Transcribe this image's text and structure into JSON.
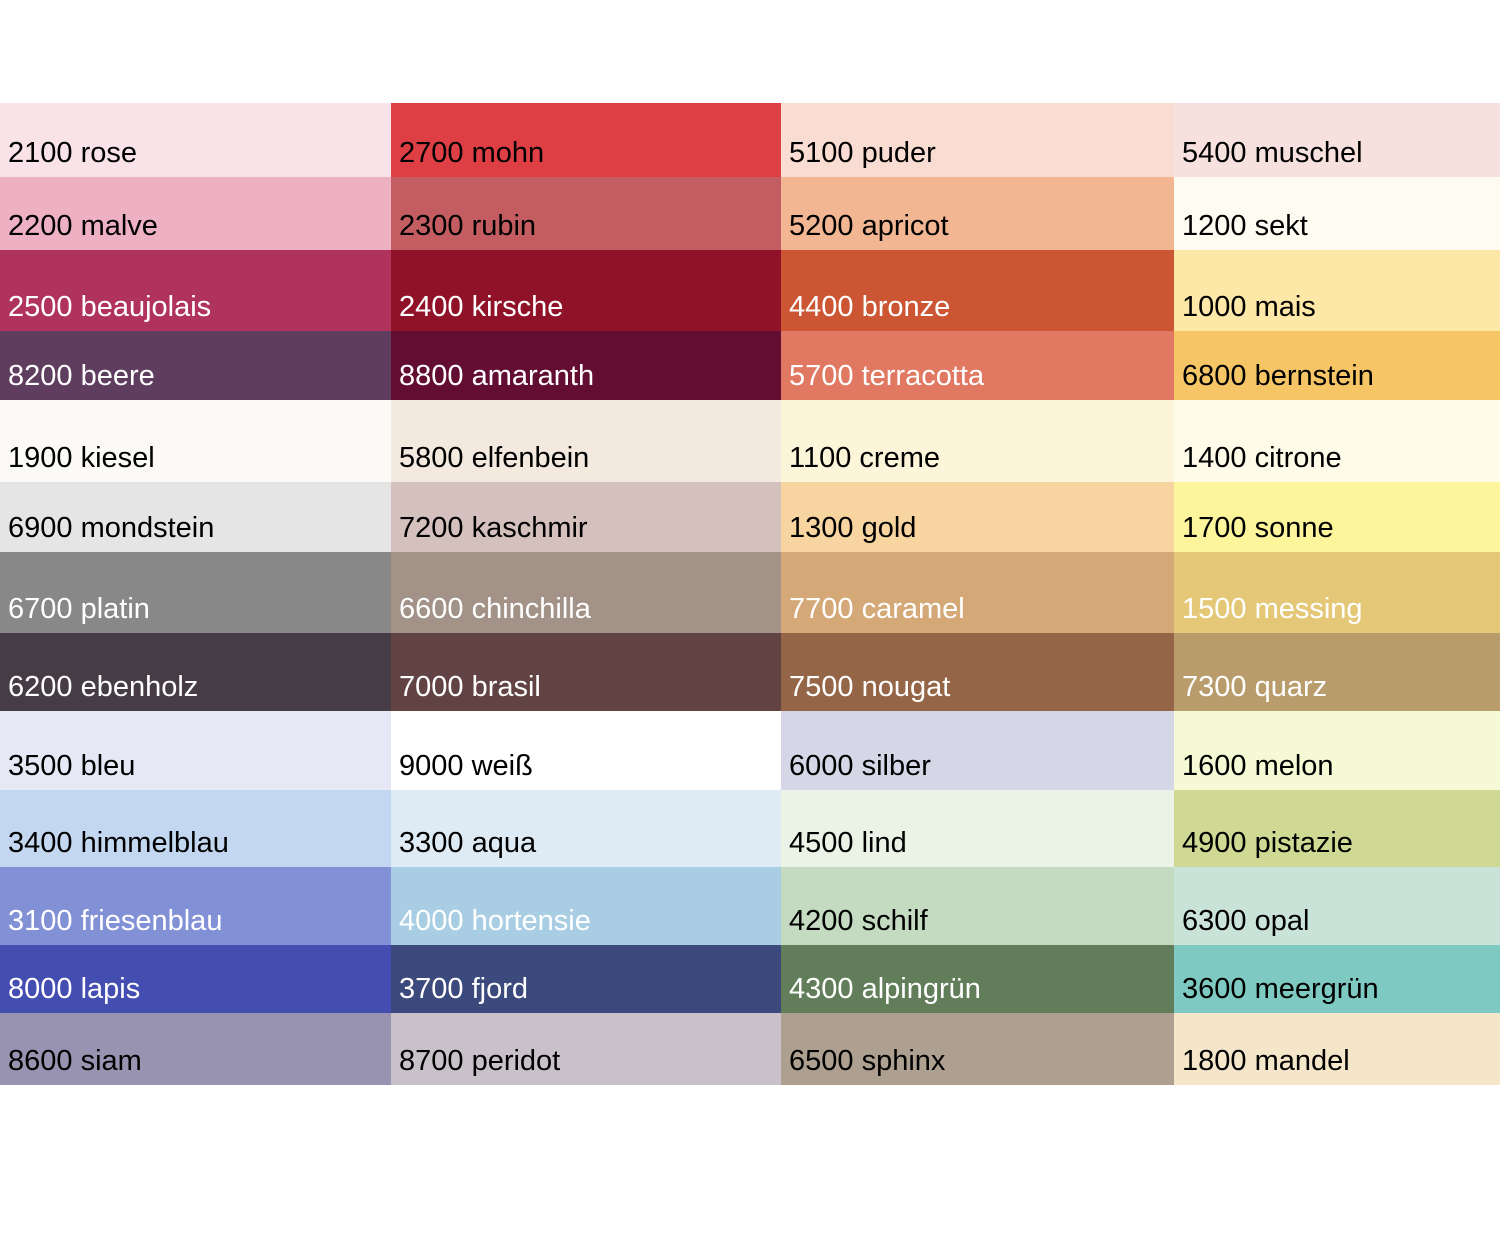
{
  "rows": [
    [
      {
        "label": "2100 rose",
        "color": "#f9e3e8",
        "text": "#000"
      },
      {
        "label": "2700 mohn",
        "color": "#dd3f45",
        "text": "#000"
      },
      {
        "label": "5100 puder",
        "color": "#f9dcd2",
        "text": "#000"
      },
      {
        "label": "5400 muschel",
        "color": "#f7e1df",
        "text": "#000"
      }
    ],
    [
      {
        "label": "2200 malve",
        "color": "#edb1c3",
        "text": "#000"
      },
      {
        "label": "2300 rubin",
        "color": "#c45d62",
        "text": "#000"
      },
      {
        "label": "5200 apricot",
        "color": "#f2b792",
        "text": "#000"
      },
      {
        "label": "1200 sekt",
        "color": "#fefbf1",
        "text": "#000"
      }
    ],
    [
      {
        "label": "2500 beaujolais",
        "color": "#b0335d",
        "text": "#fff"
      },
      {
        "label": "2400 kirsche",
        "color": "#901229",
        "text": "#fff"
      },
      {
        "label": "4400 bronze",
        "color": "#cc5533",
        "text": "#fff"
      },
      {
        "label": "1000 mais",
        "color": "#fde8a7",
        "text": "#000"
      }
    ],
    [
      {
        "label": "8200 beere",
        "color": "#5f3d5e",
        "text": "#fff"
      },
      {
        "label": "8800 amaranth",
        "color": "#640d33",
        "text": "#fff"
      },
      {
        "label": "5700 terracotta",
        "color": "#e07862",
        "text": "#fff"
      },
      {
        "label": "6800 bernstein",
        "color": "#f6c566",
        "text": "#000"
      }
    ],
    [
      {
        "label": "1900 kiesel",
        "color": "#fcfaf7",
        "text": "#000"
      },
      {
        "label": "5800 elfenbein",
        "color": "#f3e9df",
        "text": "#000"
      },
      {
        "label": "1100 creme",
        "color": "#fdf5da",
        "text": "#000"
      },
      {
        "label": "1400 citrone",
        "color": "#fefbe9",
        "text": "#000"
      }
    ],
    [
      {
        "label": "6900 mondstein",
        "color": "#e6e5e5",
        "text": "#000"
      },
      {
        "label": "7200 kaschmir",
        "color": "#d4c1be",
        "text": "#000"
      },
      {
        "label": "1300 gold",
        "color": "#f8d4a1",
        "text": "#000"
      },
      {
        "label": "1700 sonne",
        "color": "#fdf59c",
        "text": "#000"
      }
    ],
    [
      {
        "label": "6700 platin",
        "color": "#888888",
        "text": "#fff"
      },
      {
        "label": "6600 chinchilla",
        "color": "#a29287",
        "text": "#fff"
      },
      {
        "label": "7700 caramel",
        "color": "#d5a877",
        "text": "#fff"
      },
      {
        "label": "1500 messing",
        "color": "#e5c877",
        "text": "#fff"
      }
    ],
    [
      {
        "label": "6200 ebenholz",
        "color": "#463c46",
        "text": "#fff"
      },
      {
        "label": "7000 brasil",
        "color": "#614343",
        "text": "#fff"
      },
      {
        "label": "7500 nougat",
        "color": "#946647",
        "text": "#fff"
      },
      {
        "label": "7300 quarz",
        "color": "#b99c6c",
        "text": "#fff"
      }
    ],
    [
      {
        "label": "3500 bleu",
        "color": "#e6e8f6",
        "text": "#000"
      },
      {
        "label": "9000 weiß",
        "color": "#ffffff",
        "text": "#000"
      },
      {
        "label": "6000 silber",
        "color": "#d5d6e6",
        "text": "#000"
      },
      {
        "label": "1600 melon",
        "color": "#f5fad5",
        "text": "#000"
      }
    ],
    [
      {
        "label": "3400 himmelblau",
        "color": "#c3d7f0",
        "text": "#000"
      },
      {
        "label": "3300 aqua",
        "color": "#dfebf4",
        "text": "#000"
      },
      {
        "label": "4500 lind",
        "color": "#eaf3e6",
        "text": "#000"
      },
      {
        "label": "4900 pistazie",
        "color": "#d0d993",
        "text": "#000"
      }
    ],
    [
      {
        "label": "3100 friesenblau",
        "color": "#8290d6",
        "text": "#fff"
      },
      {
        "label": "4000 hortensie",
        "color": "#a9cee4",
        "text": "#fff"
      },
      {
        "label": "4200 schilf",
        "color": "#c4dbc2",
        "text": "#000"
      },
      {
        "label": "6300 opal",
        "color": "#cae3d9",
        "text": "#000"
      }
    ],
    [
      {
        "label": "8000 lapis",
        "color": "#444db0",
        "text": "#fff"
      },
      {
        "label": "3700 fjord",
        "color": "#3b497c",
        "text": "#fff"
      },
      {
        "label": "4300 alpingrün",
        "color": "#627d59",
        "text": "#fff"
      },
      {
        "label": "3600 meergrün",
        "color": "#7ecac2",
        "text": "#000"
      }
    ],
    [
      {
        "label": "8600 siam",
        "color": "#9893b0",
        "text": "#000"
      },
      {
        "label": "8700 peridot",
        "color": "#c9c1c9",
        "text": "#000"
      },
      {
        "label": "6500 sphinx",
        "color": "#aea090",
        "text": "#000"
      },
      {
        "label": "1800 mandel",
        "color": "#f6e6c9",
        "text": "#000"
      }
    ]
  ]
}
